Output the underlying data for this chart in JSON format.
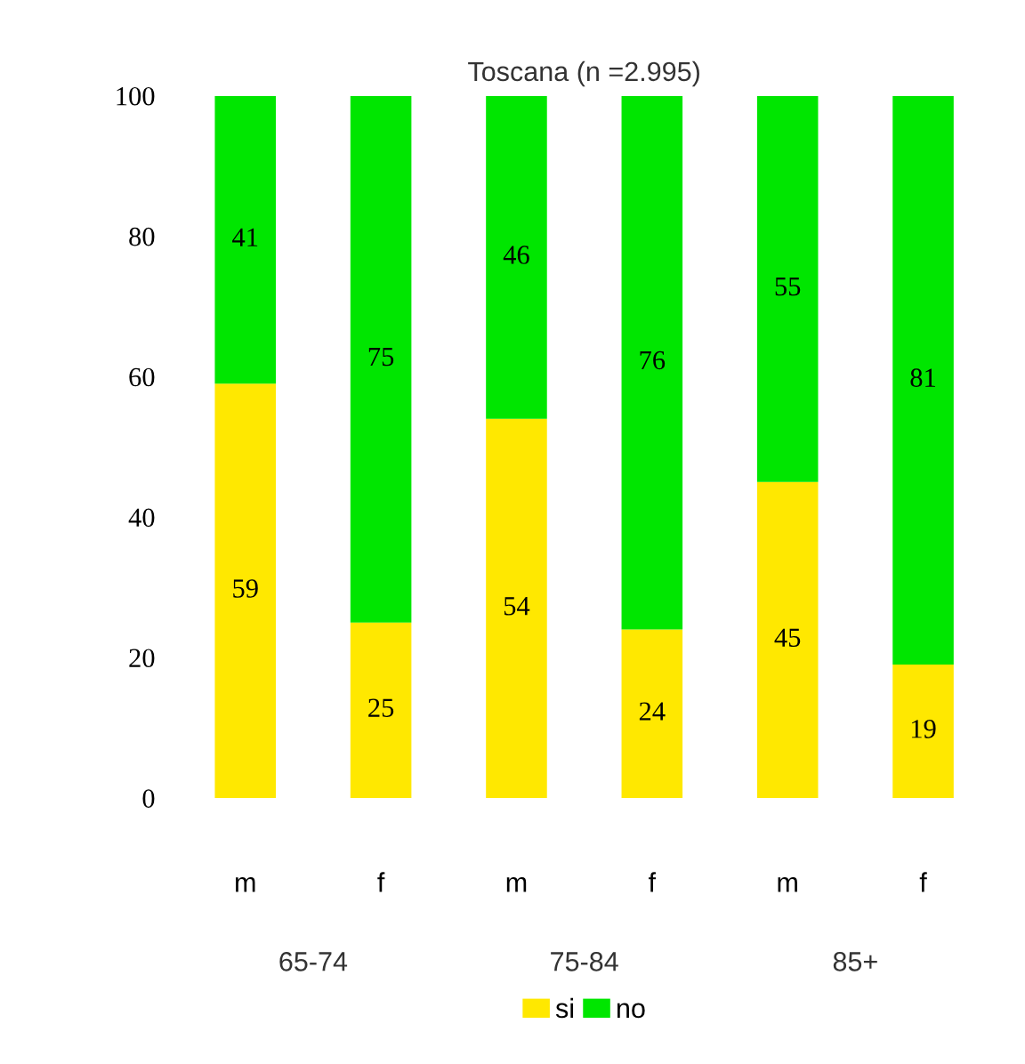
{
  "chart_data": {
    "type": "bar",
    "stacked": true,
    "subtitle": "Toscana (n =2.995)",
    "categories": [
      "m",
      "f",
      "m",
      "f",
      "m",
      "f"
    ],
    "series": [
      {
        "name": "si",
        "color": "#ffe800",
        "values": [
          59,
          25,
          54,
          24,
          45,
          19
        ]
      },
      {
        "name": "no",
        "color": "#00e600",
        "values": [
          41,
          75,
          46,
          76,
          55,
          81
        ]
      }
    ],
    "annotations": [
      "65-74",
      "75-84",
      "85+"
    ],
    "ylim": [
      0,
      100
    ],
    "yticks": [
      0,
      20,
      40,
      60,
      80,
      100
    ],
    "data_labels": true,
    "grid": false,
    "legend": "bottom"
  }
}
